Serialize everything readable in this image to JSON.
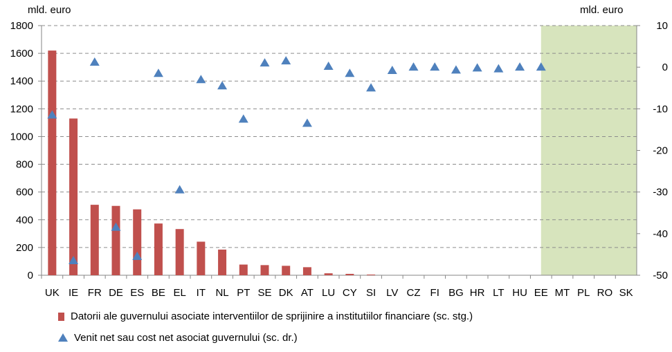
{
  "chart_data": {
    "type": "bar",
    "left_unit": "mld. euro",
    "right_unit": "mld. euro",
    "categories": [
      "UK",
      "IE",
      "FR",
      "DE",
      "ES",
      "BE",
      "EL",
      "IT",
      "NL",
      "PT",
      "SE",
      "DK",
      "AT",
      "LU",
      "CY",
      "SI",
      "LV",
      "CZ",
      "FI",
      "BG",
      "HR",
      "LT",
      "HU",
      "EE",
      "MT",
      "PL",
      "RO",
      "SK"
    ],
    "left_axis": {
      "min": 0,
      "max": 1800,
      "ticks": [
        0,
        200,
        400,
        600,
        800,
        1000,
        1200,
        1400,
        1600,
        1800
      ]
    },
    "right_axis": {
      "min": -50,
      "max": 10,
      "ticks": [
        10,
        0,
        -10,
        -20,
        -30,
        -40,
        -50
      ]
    },
    "series": [
      {
        "name": "Datorii ale guvernului asociate interventiilor de sprijinire a institutiilor financiare (sc. stg.)",
        "axis": "left",
        "color": "#c0504d",
        "values": [
          1620,
          1130,
          508,
          500,
          475,
          373,
          333,
          242,
          185,
          77,
          73,
          68,
          58,
          14,
          10,
          5,
          0,
          0,
          0,
          0,
          0,
          0,
          0,
          0,
          0,
          0,
          0,
          0
        ]
      },
      {
        "name": "Venit net sau cost net asociat guvernului (sc. dr.)",
        "axis": "right",
        "color": "#4f81bd",
        "values": [
          -11.5,
          -46.5,
          1.2,
          -38.5,
          -45.5,
          -1.5,
          -29.5,
          -3,
          -4.5,
          -12.5,
          1,
          1.5,
          -13.5,
          0.2,
          -1.5,
          -5,
          -0.8,
          0,
          0,
          -0.7,
          -0.2,
          -0.4,
          0,
          0,
          null,
          null,
          null,
          null
        ]
      }
    ],
    "shaded_region": {
      "from_category": "EE",
      "to_category": "SK",
      "color": "#d7e4bd"
    },
    "grid": true
  },
  "legend": {
    "bar_label": "Datorii ale guvernului asociate interventiilor de sprijinire a institutiilor financiare (sc. stg.)",
    "marker_label": "Venit net sau cost net asociat guvernului (sc. dr.)"
  }
}
